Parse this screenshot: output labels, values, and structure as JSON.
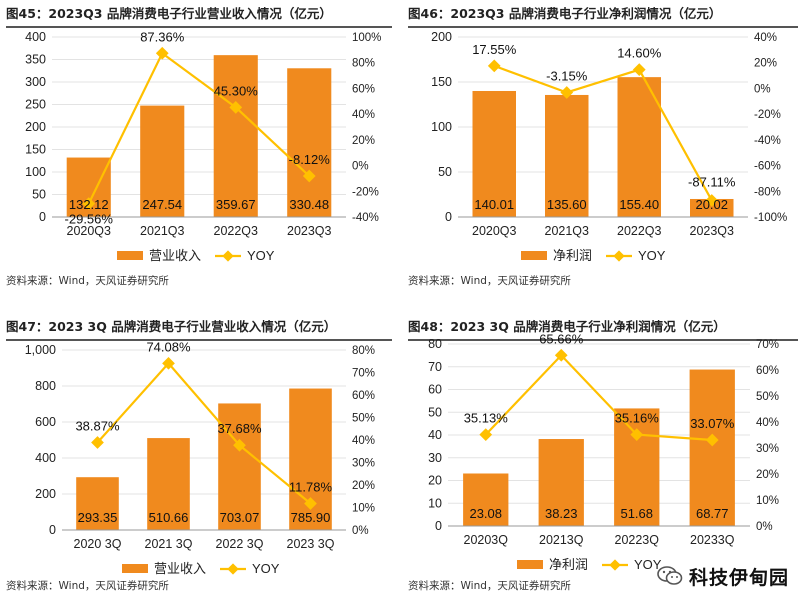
{
  "colors": {
    "bar": "#F08A1E",
    "line": "#FFC000",
    "axis": "#999999",
    "grid": "#e3e3e3",
    "text": "#222222"
  },
  "watermark": {
    "icon": "wechat-icon",
    "text": "科技伊甸园"
  },
  "chart_data": [
    {
      "type": "bar",
      "title": "图45：2023Q3 品牌消费电子行业营业收入情况（亿元）",
      "source": "资料来源：Wind，天风证券研究所",
      "categories": [
        "2020Q3",
        "2021Q3",
        "2022Q3",
        "2023Q3"
      ],
      "bar_series": {
        "name": "营业收入",
        "values": [
          132.12,
          247.54,
          359.67,
          330.48
        ],
        "labels": [
          "132.12",
          "247.54",
          "359.67",
          "330.48"
        ]
      },
      "line_series": {
        "name": "YOY",
        "values": [
          -29.56,
          87.36,
          45.3,
          -8.12
        ],
        "labels": [
          "-29.56%",
          "87.36%",
          "45.30%",
          "-8.12%"
        ]
      },
      "y_left": {
        "min": 0,
        "max": 400,
        "step": 50,
        "ticks": [
          "0",
          "50",
          "100",
          "150",
          "200",
          "250",
          "300",
          "350",
          "400"
        ]
      },
      "y_right": {
        "min": -40,
        "max": 100,
        "step": 20,
        "ticks": [
          "-40%",
          "-20%",
          "0%",
          "20%",
          "40%",
          "60%",
          "80%",
          "100%"
        ]
      },
      "legend": "bottom"
    },
    {
      "type": "bar",
      "title": "图46：2023Q3 品牌消费电子行业净利润情况（亿元）",
      "source": "资料来源：Wind，天风证券研究所",
      "categories": [
        "2020Q3",
        "2021Q3",
        "2022Q3",
        "2023Q3"
      ],
      "bar_series": {
        "name": "净利润",
        "values": [
          140.01,
          135.6,
          155.4,
          20.02
        ],
        "labels": [
          "140.01",
          "135.60",
          "155.40",
          "20.02"
        ]
      },
      "line_series": {
        "name": "YOY",
        "values": [
          17.55,
          -3.15,
          14.6,
          -87.11
        ],
        "labels": [
          "17.55%",
          "-3.15%",
          "14.60%",
          "-87.11%"
        ]
      },
      "y_left": {
        "min": 0,
        "max": 200,
        "step": 50,
        "ticks": [
          "0",
          "50",
          "100",
          "150",
          "200"
        ]
      },
      "y_right": {
        "min": -100,
        "max": 40,
        "step": 20,
        "ticks": [
          "-100%",
          "-80%",
          "-60%",
          "-40%",
          "-20%",
          "0%",
          "20%",
          "40%"
        ]
      },
      "legend": "bottom"
    },
    {
      "type": "bar",
      "title": "图47：2023 3Q 品牌消费电子行业营业收入情况（亿元）",
      "source": "资料来源：Wind，天风证券研究所",
      "categories": [
        "2020 3Q",
        "2021 3Q",
        "2022 3Q",
        "2023 3Q"
      ],
      "bar_series": {
        "name": "营业收入",
        "values": [
          293.35,
          510.66,
          703.07,
          785.9
        ],
        "labels": [
          "293.35",
          "510.66",
          "703.07",
          "785.90"
        ]
      },
      "line_series": {
        "name": "YOY",
        "values": [
          38.87,
          74.08,
          37.68,
          11.78
        ],
        "labels": [
          "38.87%",
          "74.08%",
          "37.68%",
          "11.78%"
        ]
      },
      "y_left": {
        "min": 0,
        "max": 1000,
        "step": 200,
        "ticks": [
          "0",
          "200",
          "400",
          "600",
          "800",
          "1,000"
        ]
      },
      "y_right": {
        "min": 0,
        "max": 80,
        "step": 10,
        "ticks": [
          "0%",
          "10%",
          "20%",
          "30%",
          "40%",
          "50%",
          "60%",
          "70%",
          "80%"
        ]
      },
      "legend": "bottom"
    },
    {
      "type": "bar",
      "title": "图48：2023 3Q 品牌消费电子行业净利润情况（亿元）",
      "source": "资料来源：Wind，天风证券研究所",
      "categories": [
        "20203Q",
        "20213Q",
        "20223Q",
        "20233Q"
      ],
      "bar_series": {
        "name": "净利润",
        "values": [
          23.08,
          38.23,
          51.68,
          68.77
        ],
        "labels": [
          "23.08",
          "38.23",
          "51.68",
          "68.77"
        ]
      },
      "line_series": {
        "name": "YOY",
        "values": [
          35.13,
          65.66,
          35.16,
          33.07
        ],
        "labels": [
          "35.13%",
          "65.66%",
          "35.16%",
          "33.07%"
        ]
      },
      "y_left": {
        "min": 0,
        "max": 80,
        "step": 10,
        "ticks": [
          "0",
          "10",
          "20",
          "30",
          "40",
          "50",
          "60",
          "70",
          "80"
        ]
      },
      "y_right": {
        "min": 0,
        "max": 70,
        "step": 10,
        "ticks": [
          "0%",
          "10%",
          "20%",
          "30%",
          "40%",
          "50%",
          "60%",
          "70%"
        ]
      },
      "legend": "bottom"
    }
  ]
}
